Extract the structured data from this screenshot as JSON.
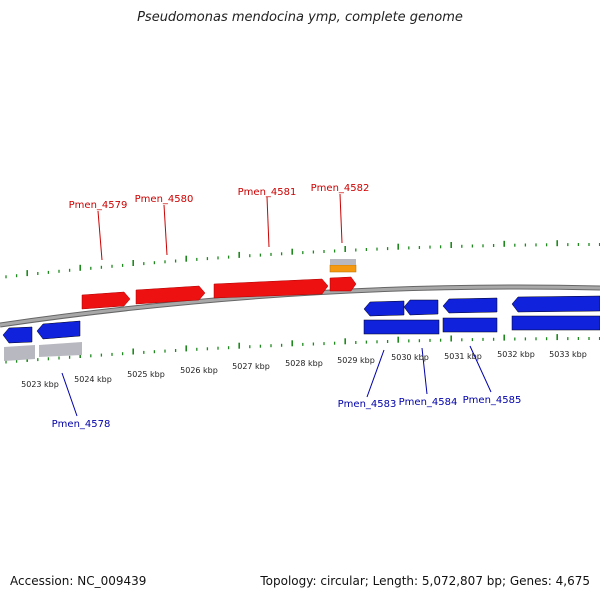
{
  "title": "Pseudomonas mendocina ymp, complete genome",
  "footer": {
    "accession": "Accession: NC_009439",
    "summary": "Topology: circular; Length: 5,072,807 bp; Genes: 4,675"
  },
  "colors": {
    "forward_gene": "#ee1111",
    "reverse_gene": "#1122dd",
    "rna_gene": "#f59a10",
    "pseudo_gene": "#b0b0b8",
    "backbone": "#888888",
    "tick": "#1e8a1e",
    "fwd_label": "#cc0000",
    "rev_label": "#0000aa"
  },
  "ruler": {
    "labels": [
      "5023 kbp",
      "5024 kbp",
      "5025 kbp",
      "5026 kbp",
      "5027 kbp",
      "5028 kbp",
      "5029 kbp",
      "5030 kbp",
      "5031 kbp",
      "5032 kbp",
      "5033 kbp"
    ]
  },
  "genes": {
    "forward": [
      {
        "locus": "Pmen_4579",
        "labeled": true
      },
      {
        "locus": "Pmen_4580",
        "labeled": true
      },
      {
        "locus": "Pmen_4581",
        "labeled": true
      },
      {
        "locus": "Pmen_4582",
        "labeled": true
      }
    ],
    "reverse": [
      {
        "locus": "Pmen_4578",
        "labeled": true
      },
      {
        "locus": "Pmen_4583",
        "labeled": true
      },
      {
        "locus": "Pmen_4584",
        "labeled": true
      },
      {
        "locus": "Pmen_4585",
        "labeled": true
      }
    ]
  }
}
